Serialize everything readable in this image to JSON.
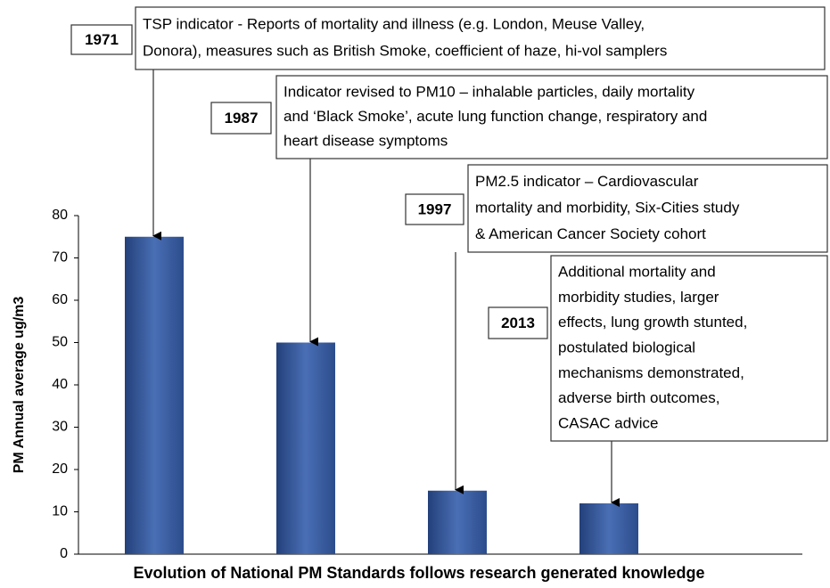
{
  "chart_data": {
    "type": "bar",
    "ylabel": "PM Annual average ug/m3",
    "xlabel": "Evolution of National PM Standards follows research generated knowledge",
    "categories": [
      null,
      null,
      null,
      null
    ],
    "values": [
      75,
      50,
      15,
      12
    ],
    "color": "#4a6fb5",
    "ylim": [
      0,
      80
    ],
    "yticks": [
      0,
      10,
      20,
      30,
      40,
      50,
      60,
      70,
      80
    ],
    "annotations": [
      {
        "year": "1971",
        "lines": [
          "TSP indicator - Reports of mortality and illness (e.g. London,  Meuse Valley,",
          "Donora), measures such as British Smoke, coefficient of haze, hi-vol samplers"
        ]
      },
      {
        "year": "1987",
        "lines": [
          "Indicator revised to PM10 – inhalable particles, daily mortality",
          "and ‘Black Smoke’, acute lung function change, respiratory and",
          "heart disease symptoms"
        ]
      },
      {
        "year": "1997",
        "lines": [
          "PM2.5 indicator – Cardiovascular",
          "mortality and morbidity, Six-Cities study",
          "& American Cancer Society cohort"
        ]
      },
      {
        "year": "2013",
        "lines": [
          "Additional mortality and",
          "morbidity studies, larger",
          "effects, lung growth stunted,",
          "postulated biological",
          "mechanisms demonstrated,",
          "adverse birth outcomes,",
          "CASAC advice"
        ]
      }
    ]
  }
}
